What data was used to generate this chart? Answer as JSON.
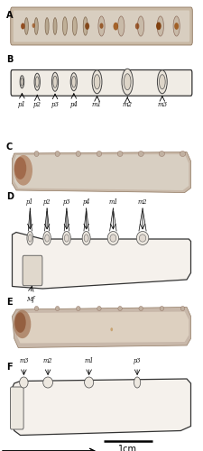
{
  "figure_width": 2.25,
  "figure_height": 5.0,
  "dpi": 100,
  "background_color": "#ffffff",
  "panel_B_labels": [
    "p1",
    "p2",
    "p3",
    "p4",
    "m1",
    "m2",
    "m3"
  ],
  "panel_D_labels": [
    "p1",
    "p2",
    "p3",
    "p4",
    "m1",
    "m2"
  ],
  "panel_D_mf": "Mf",
  "panel_F_labels": [
    "m3",
    "m2",
    "m1",
    "p3"
  ],
  "scale_bar_text": "1cm",
  "bone_photo_color": "#c8b8a8",
  "bone_photo_edge": "#a09080",
  "drawing_fill": "#f5f0ea",
  "drawing_edge": "#222222",
  "tooth_fill_small": "#e0d8d0",
  "tooth_fill_large": "#ddd0c0",
  "spot_colors": [
    "#9B5520",
    "#8B4513",
    "#a06030",
    "#b07040",
    "#7a4010"
  ]
}
